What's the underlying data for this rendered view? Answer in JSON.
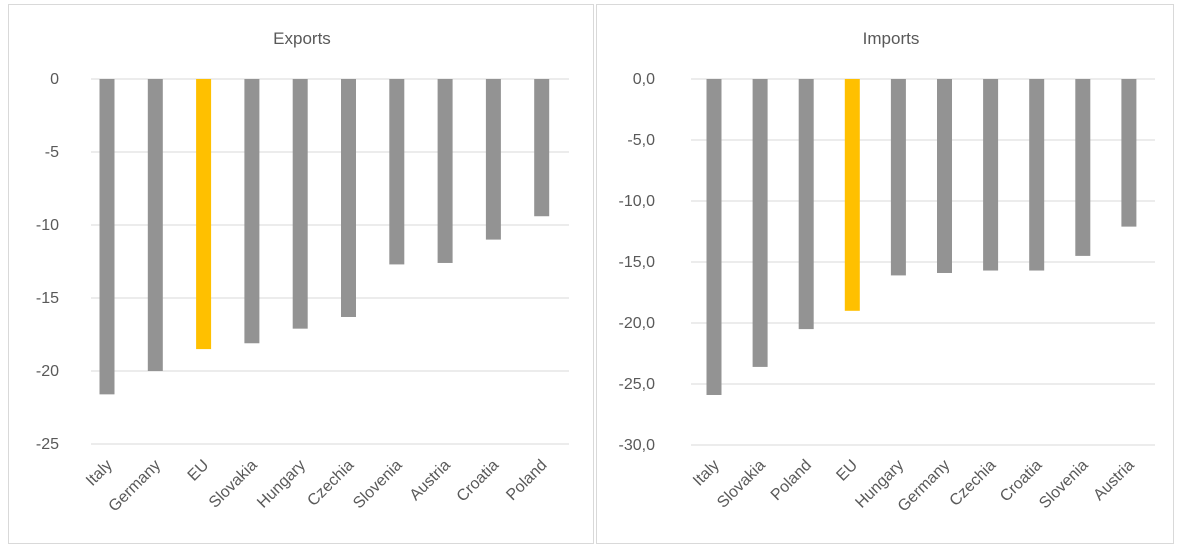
{
  "chart_data": [
    {
      "type": "bar",
      "title": "Exports",
      "categories": [
        "Italy",
        "Germany",
        "EU",
        "Slovakia",
        "Hungary",
        "Czechia",
        "Slovenia",
        "Austria",
        "Croatia",
        "Poland"
      ],
      "values": [
        -21.6,
        -20.0,
        -18.5,
        -18.1,
        -17.1,
        -16.3,
        -12.7,
        -12.6,
        -11.0,
        -9.4
      ],
      "highlight_category": "EU",
      "ylim": [
        -25,
        0
      ],
      "yticks": [
        0,
        -5,
        -10,
        -15,
        -20,
        -25
      ],
      "ytick_labels": [
        "0",
        "-5",
        "-10",
        "-15",
        "-20",
        "-25"
      ],
      "grid": true,
      "xlabel": "",
      "ylabel": ""
    },
    {
      "type": "bar",
      "title": "Imports",
      "categories": [
        "Italy",
        "Slovakia",
        "Poland",
        "EU",
        "Hungary",
        "Germany",
        "Czechia",
        "Croatia",
        "Slovenia",
        "Austria"
      ],
      "values": [
        -25.9,
        -23.6,
        -20.5,
        -19.0,
        -16.1,
        -15.9,
        -15.7,
        -15.7,
        -14.5,
        -12.1
      ],
      "highlight_category": "EU",
      "ylim": [
        -30,
        0
      ],
      "yticks": [
        0,
        -5,
        -10,
        -15,
        -20,
        -25,
        -30
      ],
      "ytick_labels": [
        "0,0",
        "-5,0",
        "-10,0",
        "-15,0",
        "-20,0",
        "-25,0",
        "-30,0"
      ],
      "grid": true,
      "xlabel": "",
      "ylabel": ""
    }
  ],
  "colors": {
    "bar": "#939393",
    "highlight": "#ffc000",
    "grid": "#d9d9d9",
    "text": "#595959"
  }
}
